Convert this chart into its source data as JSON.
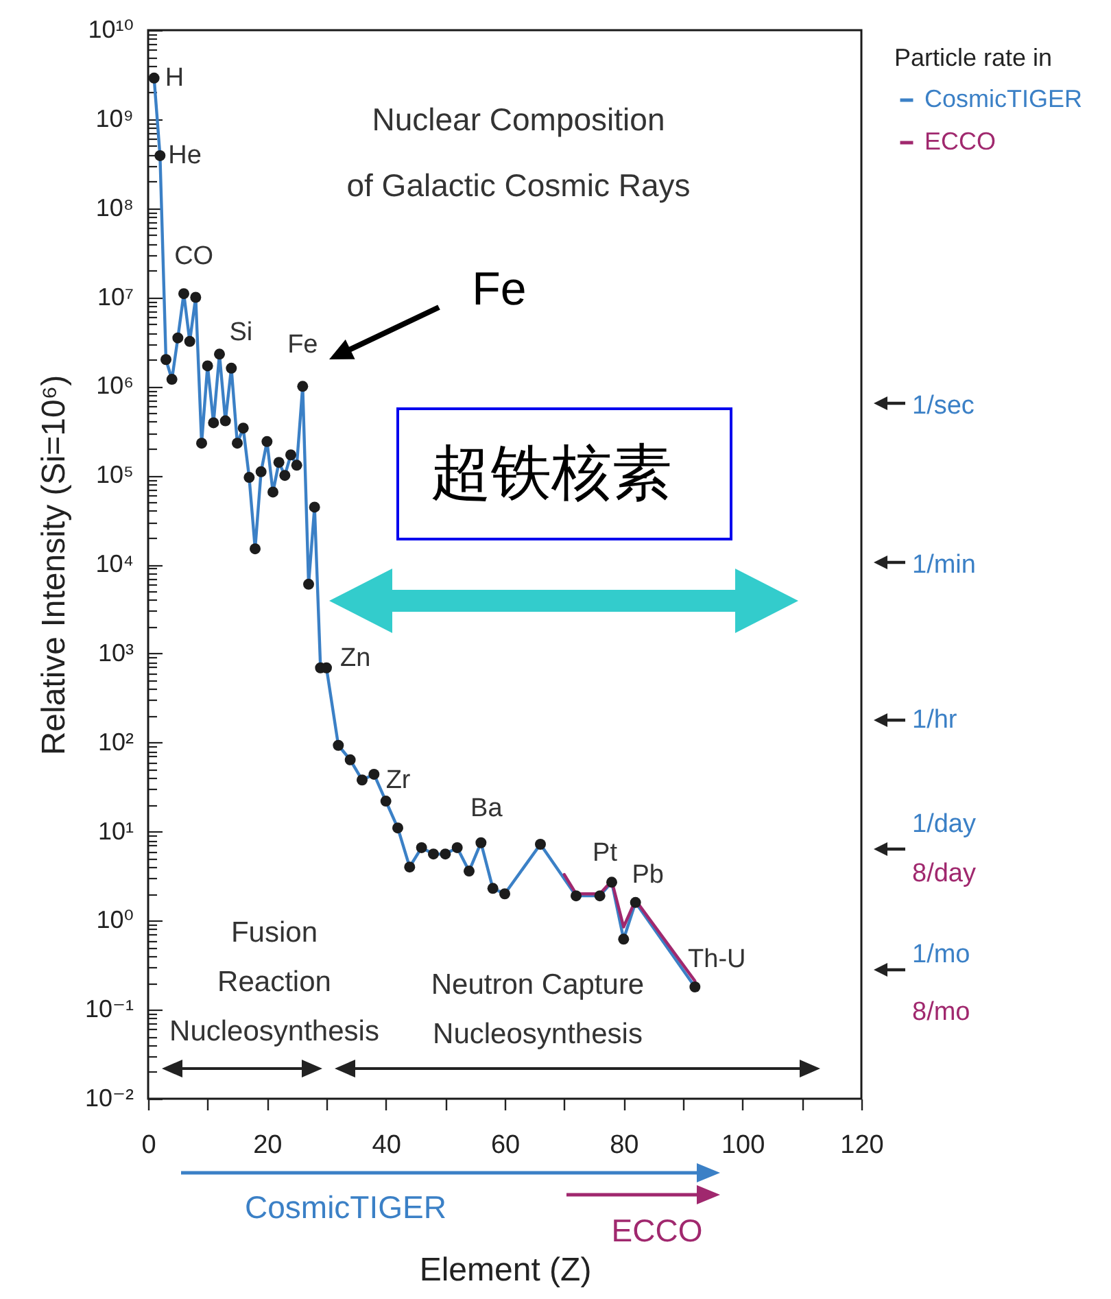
{
  "chart_data": {
    "type": "line",
    "title": "Nuclear Composition of Galactic Cosmic Rays",
    "xlabel": "Element (Z)",
    "ylabel": "Relative Intensity (Si=10⁶)",
    "legend_title": "Particle rate in",
    "legend": "top right",
    "log": "y",
    "xlim": [
      0,
      120
    ],
    "xticks": [
      0,
      {
        "value": 10,
        "label": null
      },
      20,
      {
        "value": 30,
        "label": null
      },
      40,
      {
        "value": 50,
        "label": null
      },
      60,
      {
        "value": 70,
        "label": null
      },
      80,
      {
        "value": 90,
        "label": null
      },
      100,
      {
        "value": 110,
        "label": null
      },
      120
    ],
    "ylim": [
      0.01,
      10000000000
    ],
    "yticks": [
      {
        "value": 0.01,
        "label": "10⁻²"
      },
      {
        "value": 0.02,
        "label": null
      },
      {
        "value": 0.03,
        "label": null
      },
      {
        "value": 0.04,
        "label": null
      },
      {
        "value": 0.05,
        "label": null
      },
      {
        "value": 0.06,
        "label": null
      },
      {
        "value": 0.07,
        "label": null
      },
      {
        "value": 0.08,
        "label": null
      },
      {
        "value": 0.09,
        "label": null
      },
      {
        "value": 0.1,
        "label": "10⁻¹"
      },
      {
        "value": 0.2,
        "label": null
      },
      {
        "value": 0.3,
        "label": null
      },
      {
        "value": 0.4,
        "label": null
      },
      {
        "value": 0.5,
        "label": null
      },
      {
        "value": 0.6,
        "label": null
      },
      {
        "value": 0.7,
        "label": null
      },
      {
        "value": 0.8,
        "label": null
      },
      {
        "value": 0.9,
        "label": null
      },
      {
        "value": 1,
        "label": "10⁰"
      },
      {
        "value": 2,
        "label": null
      },
      {
        "value": 3,
        "label": null
      },
      {
        "value": 4,
        "label": null
      },
      {
        "value": 5,
        "label": null
      },
      {
        "value": 6,
        "label": null
      },
      {
        "value": 7,
        "label": null
      },
      {
        "value": 8,
        "label": null
      },
      {
        "value": 9,
        "label": null
      },
      {
        "value": 10,
        "label": "10¹"
      },
      {
        "value": 20,
        "label": null
      },
      {
        "value": 30,
        "label": null
      },
      {
        "value": 40,
        "label": null
      },
      {
        "value": 50,
        "label": null
      },
      {
        "value": 60,
        "label": null
      },
      {
        "value": 70,
        "label": null
      },
      {
        "value": 80,
        "label": null
      },
      {
        "value": 90,
        "label": null
      },
      {
        "value": 100,
        "label": "10²"
      },
      {
        "value": 200,
        "label": null
      },
      {
        "value": 300,
        "label": null
      },
      {
        "value": 400,
        "label": null
      },
      {
        "value": 500,
        "label": null
      },
      {
        "value": 600,
        "label": null
      },
      {
        "value": 700,
        "label": null
      },
      {
        "value": 800,
        "label": null
      },
      {
        "value": 900,
        "label": null
      },
      {
        "value": 1000,
        "label": "10³"
      },
      {
        "value": 2000,
        "label": null
      },
      {
        "value": 3000,
        "label": null
      },
      {
        "value": 4000,
        "label": null
      },
      {
        "value": 5000,
        "label": null
      },
      {
        "value": 6000,
        "label": null
      },
      {
        "value": 7000,
        "label": null
      },
      {
        "value": 8000,
        "label": null
      },
      {
        "value": 9000,
        "label": null
      },
      {
        "value": 10000,
        "label": "10⁴"
      },
      {
        "value": 20000,
        "label": null
      },
      {
        "value": 30000,
        "label": null
      },
      {
        "value": 40000,
        "label": null
      },
      {
        "value": 50000,
        "label": null
      },
      {
        "value": 60000,
        "label": null
      },
      {
        "value": 70000,
        "label": null
      },
      {
        "value": 80000,
        "label": null
      },
      {
        "value": 90000,
        "label": null
      },
      {
        "value": 100000,
        "label": "10⁵"
      },
      {
        "value": 200000,
        "label": null
      },
      {
        "value": 300000,
        "label": null
      },
      {
        "value": 400000,
        "label": null
      },
      {
        "value": 500000,
        "label": null
      },
      {
        "value": 600000,
        "label": null
      },
      {
        "value": 700000,
        "label": null
      },
      {
        "value": 800000,
        "label": null
      },
      {
        "value": 900000,
        "label": null
      },
      {
        "value": 1000000,
        "label": "10⁶"
      },
      {
        "value": 2000000,
        "label": null
      },
      {
        "value": 3000000,
        "label": null
      },
      {
        "value": 4000000,
        "label": null
      },
      {
        "value": 5000000,
        "label": null
      },
      {
        "value": 6000000,
        "label": null
      },
      {
        "value": 7000000,
        "label": null
      },
      {
        "value": 8000000,
        "label": null
      },
      {
        "value": 9000000,
        "label": null
      },
      {
        "value": 10000000,
        "label": "10⁷"
      },
      {
        "value": 20000000,
        "label": null
      },
      {
        "value": 30000000,
        "label": null
      },
      {
        "value": 40000000,
        "label": null
      },
      {
        "value": 50000000,
        "label": null
      },
      {
        "value": 60000000,
        "label": null
      },
      {
        "value": 70000000,
        "label": null
      },
      {
        "value": 80000000,
        "label": null
      },
      {
        "value": 90000000,
        "label": null
      },
      {
        "value": 100000000,
        "label": "10⁸"
      },
      {
        "value": 200000000,
        "label": null
      },
      {
        "value": 300000000,
        "label": null
      },
      {
        "value": 400000000,
        "label": null
      },
      {
        "value": 500000000,
        "label": null
      },
      {
        "value": 600000000,
        "label": null
      },
      {
        "value": 700000000,
        "label": null
      },
      {
        "value": 800000000,
        "label": null
      },
      {
        "value": 900000000,
        "label": null
      },
      {
        "value": 1000000000,
        "label": "10⁹"
      },
      {
        "value": 2000000000,
        "label": null
      },
      {
        "value": 3000000000,
        "label": null
      },
      {
        "value": 4000000000,
        "label": null
      },
      {
        "value": 5000000000,
        "label": null
      },
      {
        "value": 6000000000,
        "label": null
      },
      {
        "value": 7000000000,
        "label": null
      },
      {
        "value": 8000000000,
        "label": null
      },
      {
        "value": 9000000000,
        "label": null
      },
      {
        "value": 10000000000,
        "label": "10¹⁰"
      }
    ],
    "series": [
      {
        "name": "CosmicTIGER",
        "color": "#3b80c6",
        "x": [
          1,
          2,
          3,
          4,
          5,
          6,
          7,
          8,
          9,
          10,
          11,
          12,
          13,
          14,
          15,
          16,
          17,
          18,
          19,
          20,
          21,
          22,
          23,
          24,
          25,
          26,
          27,
          28,
          29,
          30,
          32,
          34,
          36,
          38,
          40,
          42,
          44,
          46,
          48,
          50,
          52,
          54,
          56,
          58,
          60,
          66,
          72,
          76,
          78,
          80,
          82,
          92
        ],
        "values": [
          2900000000,
          390000000,
          2000000,
          1200000,
          3500000,
          11000000,
          3200000,
          10000000,
          230000,
          1700000,
          390000,
          2300000,
          410000,
          1600000,
          230000,
          340000,
          95000,
          15000,
          110000,
          240000,
          65000,
          140000,
          100000,
          170000,
          130000,
          1000000,
          6000,
          44000,
          690,
          690,
          93,
          64,
          38,
          44,
          22,
          11,
          4.0,
          6.6,
          5.6,
          5.6,
          6.6,
          3.6,
          7.5,
          2.3,
          2.0,
          7.2,
          1.9,
          1.9,
          2.7,
          0.62,
          1.6,
          0.18
        ]
      },
      {
        "name": "ECCO",
        "color": "#a0286e",
        "x": [
          70,
          72,
          76,
          78,
          80,
          82,
          92
        ],
        "values": [
          3.3,
          2.0,
          2.0,
          2.8,
          0.85,
          1.7,
          0.21
        ]
      },
      {
        "type": "scatter",
        "color": "#1c1c1c",
        "x": [
          1,
          2,
          3,
          4,
          5,
          6,
          7,
          8,
          9,
          10,
          11,
          12,
          13,
          14,
          15,
          16,
          17,
          18,
          19,
          20,
          21,
          22,
          23,
          24,
          25,
          26,
          27,
          28,
          29,
          30,
          32,
          34,
          36,
          38,
          40,
          42,
          44,
          46,
          48,
          50,
          52,
          54,
          56,
          58,
          60,
          66,
          72,
          76,
          78,
          80,
          82,
          92
        ],
        "values": [
          2900000000,
          390000000,
          2000000,
          1200000,
          3500000,
          11000000,
          3200000,
          10000000,
          230000,
          1700000,
          390000,
          2300000,
          410000,
          1600000,
          230000,
          340000,
          95000,
          15000,
          110000,
          240000,
          65000,
          140000,
          100000,
          170000,
          130000,
          1000000,
          6000,
          44000,
          690,
          690,
          93,
          64,
          38,
          44,
          22,
          11,
          4.0,
          6.6,
          5.6,
          5.6,
          6.6,
          3.6,
          7.5,
          2.3,
          2.0,
          7.2,
          1.9,
          1.9,
          2.7,
          0.62,
          1.6,
          0.18
        ]
      }
    ],
    "annotations": [
      {
        "text": "H",
        "x": 1,
        "y": 2900000000
      },
      {
        "text": "He",
        "x": 2,
        "y": 390000000
      },
      {
        "text": "CO",
        "x": 7,
        "y": 11000000
      },
      {
        "text": "Si",
        "x": 14,
        "y": 1600000
      },
      {
        "text": "Fe",
        "x": 26,
        "y": 1000000
      },
      {
        "text": "Zn",
        "x": 30,
        "y": 690
      },
      {
        "text": "Zr",
        "x": 40,
        "y": 22
      },
      {
        "text": "Ba",
        "x": 56,
        "y": 7.5
      },
      {
        "text": "Pt",
        "x": 78,
        "y": 2.7
      },
      {
        "text": "Pb",
        "x": 82,
        "y": 1.6
      },
      {
        "text": "Th-U",
        "x": 92,
        "y": 0.18
      },
      "Fe",
      "超铁核素",
      "Fusion Reaction Nucleosynthesis",
      "Neutron Capture Nucleosynthesis",
      "CosmicTIGER",
      "ECCO",
      "1/sec",
      "1/min",
      "1/hr",
      "1/day",
      "8/day",
      "1/mo",
      "8/mo"
    ]
  }
}
